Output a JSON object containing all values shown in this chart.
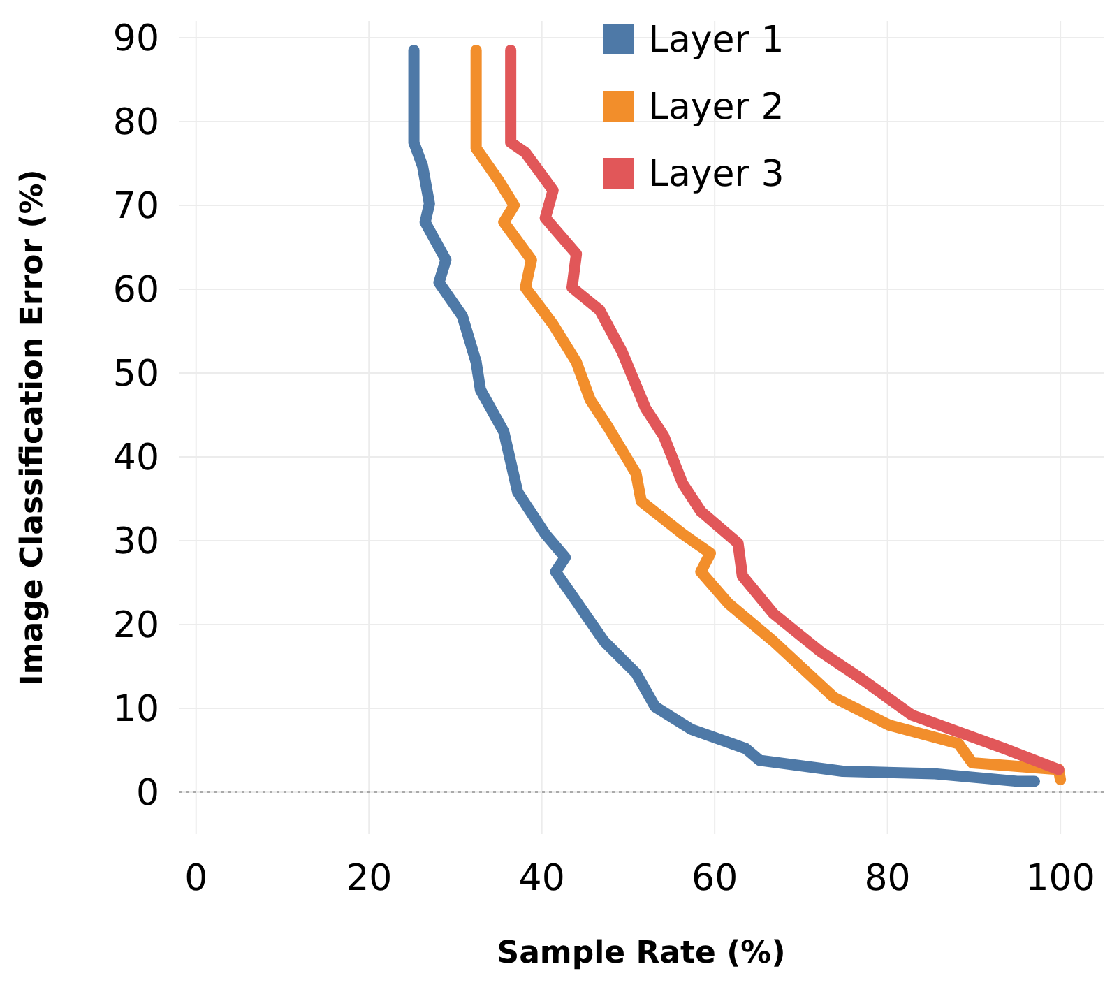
{
  "chart_data": {
    "type": "line",
    "xlabel": "Sample Rate (%)",
    "ylabel": "Image Classification Error (%)",
    "xlim": [
      -2,
      105
    ],
    "ylim": [
      -5,
      92
    ],
    "xticks": [
      0,
      20,
      40,
      60,
      80,
      100
    ],
    "yticks": [
      0,
      10,
      20,
      30,
      40,
      50,
      60,
      70,
      80,
      90
    ],
    "grid": true,
    "legend": "top right",
    "marker": "none",
    "line_style": "solid",
    "ref_lines": [
      {
        "axis": "y",
        "value": 0,
        "color": "#aaaaaa",
        "line_style": "dotted"
      }
    ],
    "series": [
      {
        "name": "Layer 1",
        "color": "#4e79a7",
        "x": [
          25.2,
          25.2,
          26.2,
          27,
          26.5,
          28.9,
          28.1,
          30.8,
          32.4,
          32.9,
          35.6,
          37.2,
          40.4,
          42.7,
          41.6,
          43.5,
          47.2,
          50.9,
          53.1,
          57.3,
          63.6,
          65.2,
          74.8,
          85.5,
          95,
          97
        ],
        "values": [
          88.5,
          77.5,
          74.7,
          70.2,
          68,
          63.5,
          60.8,
          56.8,
          51.3,
          48,
          43,
          35.8,
          30.8,
          28,
          26.3,
          23.5,
          18,
          14.2,
          10.2,
          7.5,
          5.2,
          3.8,
          2.5,
          2.2,
          1.3,
          1.3
        ]
      },
      {
        "name": "Layer 2",
        "color": "#f28e2b",
        "x": [
          32.4,
          32.4,
          32.4,
          35,
          36.8,
          35.6,
          38.8,
          38.1,
          41.3,
          44,
          45.6,
          47.7,
          50.9,
          51.5,
          56.3,
          59.5,
          58.4,
          61.6,
          66.8,
          73.8,
          80.2,
          88.2,
          89.8,
          99.8,
          100
        ],
        "values": [
          88.5,
          82.5,
          76.8,
          73,
          70,
          68,
          63.5,
          60.2,
          55.8,
          51.3,
          46.8,
          43.5,
          38,
          34.7,
          30.8,
          28.5,
          26.3,
          22.5,
          18,
          11.3,
          8,
          5.8,
          3.5,
          2.7,
          1.5
        ]
      },
      {
        "name": "Layer 3",
        "color": "#e15759",
        "x": [
          36.4,
          36.4,
          38.1,
          41.3,
          40.4,
          44,
          43.5,
          46.7,
          49.3,
          52,
          54.1,
          56.3,
          58.4,
          62.7,
          63.2,
          66.8,
          72.2,
          77,
          82.8,
          93.5,
          99.8
        ],
        "values": [
          88.5,
          77.5,
          76.3,
          71.8,
          68.5,
          64.2,
          60.2,
          57.5,
          52.5,
          45.8,
          42.5,
          36.8,
          33.5,
          29.7,
          25.8,
          21.3,
          16.8,
          13.5,
          9.2,
          5.2,
          2.7
        ]
      }
    ]
  }
}
